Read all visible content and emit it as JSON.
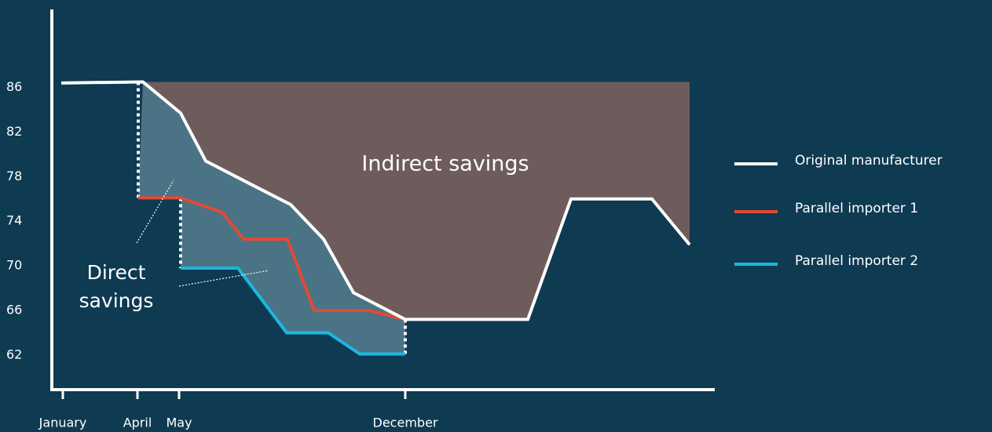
{
  "chart_data": {
    "type": "line",
    "xlim": [
      -3.2,
      83
    ],
    "ylim": [
      58.9,
      93
    ],
    "yticks": [
      62,
      66,
      70,
      74,
      78,
      82,
      86
    ],
    "xticks": [
      {
        "value": 0,
        "label": "January"
      },
      {
        "value": 9.5,
        "label": "April"
      },
      {
        "value": 14.8,
        "label": "May"
      },
      {
        "value": 43.6,
        "label": "December"
      }
    ],
    "series": [
      {
        "name": "Original manufacturer",
        "color": "#ffffff",
        "x": [
          -0.2,
          10.2,
          15,
          18.2,
          24,
          29,
          33.2,
          37,
          43.6,
          59.2,
          64.7,
          75,
          79.8
        ],
        "values": [
          86.4,
          86.5,
          83.7,
          79.4,
          77.3,
          75.5,
          72.4,
          67.6,
          65.2,
          65.2,
          76,
          76,
          71.9
        ]
      },
      {
        "name": "Parallel importer 1",
        "color": "#e24a33",
        "x": [
          9.6,
          15,
          20.3,
          23,
          28.6,
          32,
          39,
          43.6
        ],
        "values": [
          76.1,
          76.1,
          74.8,
          72.4,
          72.4,
          66,
          66,
          65.2
        ]
      },
      {
        "name": "Parallel importer 2",
        "color": "#1ab8e0",
        "x": [
          15,
          22.3,
          28.5,
          33.8,
          37.8,
          43.6
        ],
        "values": [
          69.8,
          69.8,
          64,
          64,
          62.1,
          62.1
        ]
      }
    ],
    "areas": [
      {
        "label": "Indirect savings",
        "color": "#6e5c5c"
      },
      {
        "label": [
          "Direct",
          "savings"
        ],
        "color": "#4a7386"
      }
    ]
  }
}
